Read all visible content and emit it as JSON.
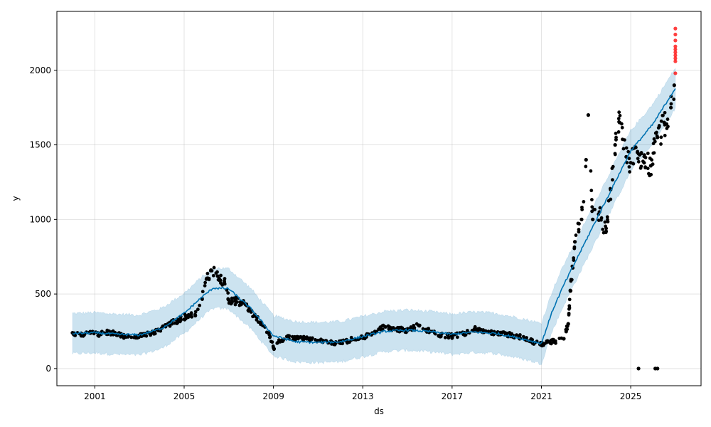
{
  "chart_data": {
    "type": "scatter",
    "title": "",
    "xlabel": "ds",
    "ylabel": "y",
    "xlim": [
      1999.3,
      2028.15
    ],
    "ylim": [
      -115,
      2395
    ],
    "x_ticks": [
      2001,
      2005,
      2009,
      2013,
      2017,
      2021,
      2025
    ],
    "x_tick_labels": [
      "2001",
      "2005",
      "2009",
      "2013",
      "2017",
      "2021",
      "2025"
    ],
    "y_ticks": [
      0,
      500,
      1000,
      1500,
      2000
    ],
    "y_tick_labels": [
      "0",
      "500",
      "1000",
      "1500",
      "2000"
    ],
    "grid": true,
    "colors": {
      "observed": "#000000",
      "forecast_line": "#0072B2",
      "uncertainty_band": "#0072B2",
      "future_points": "#ff0000"
    },
    "series": [
      {
        "kind": "observed",
        "points": [
          [
            2000.0,
            240
          ],
          [
            2000.4,
            228
          ],
          [
            2000.8,
            238
          ],
          [
            2001.2,
            230
          ],
          [
            2001.6,
            245
          ],
          [
            2002.0,
            232
          ],
          [
            2002.4,
            212
          ],
          [
            2002.8,
            220
          ],
          [
            2003.2,
            222
          ],
          [
            2003.6,
            240
          ],
          [
            2004.0,
            272
          ],
          [
            2004.4,
            300
          ],
          [
            2004.8,
            330
          ],
          [
            2005.2,
            360
          ],
          [
            2005.5,
            355
          ],
          [
            2005.8,
            470
          ],
          [
            2006.0,
            600
          ],
          [
            2006.2,
            660
          ],
          [
            2006.5,
            620
          ],
          [
            2006.8,
            580
          ],
          [
            2007.0,
            460
          ],
          [
            2007.3,
            450
          ],
          [
            2007.6,
            440
          ],
          [
            2008.0,
            380
          ],
          [
            2008.4,
            310
          ],
          [
            2008.8,
            240
          ],
          [
            2009.0,
            140
          ],
          [
            2009.2,
            175
          ],
          [
            2009.6,
            215
          ],
          [
            2010.0,
            200
          ],
          [
            2010.5,
            200
          ],
          [
            2011.0,
            188
          ],
          [
            2011.5,
            175
          ],
          [
            2012.0,
            170
          ],
          [
            2012.5,
            195
          ],
          [
            2013.0,
            210
          ],
          [
            2013.5,
            240
          ],
          [
            2014.0,
            280
          ],
          [
            2014.5,
            265
          ],
          [
            2015.0,
            255
          ],
          [
            2015.5,
            290
          ],
          [
            2016.0,
            250
          ],
          [
            2016.5,
            225
          ],
          [
            2017.0,
            218
          ],
          [
            2017.5,
            232
          ],
          [
            2018.0,
            265
          ],
          [
            2018.5,
            252
          ],
          [
            2019.0,
            238
          ],
          [
            2019.5,
            228
          ],
          [
            2020.0,
            215
          ],
          [
            2020.5,
            185
          ],
          [
            2021.0,
            165
          ],
          [
            2021.3,
            180
          ],
          [
            2021.6,
            182
          ],
          [
            2022.0,
            200
          ],
          [
            2022.2,
            300
          ],
          [
            2022.3,
            520
          ],
          [
            2022.5,
            850
          ],
          [
            2022.8,
            1000
          ],
          [
            2023.0,
            1400
          ],
          [
            2023.1,
            1700
          ],
          [
            2023.3,
            1000
          ],
          [
            2023.6,
            1050
          ],
          [
            2023.9,
            920
          ],
          [
            2024.1,
            1200
          ],
          [
            2024.3,
            1500
          ],
          [
            2024.5,
            1650
          ],
          [
            2024.8,
            1420
          ],
          [
            2025.0,
            1380
          ],
          [
            2025.3,
            1450
          ],
          [
            2025.6,
            1380
          ],
          [
            2025.9,
            1360
          ],
          [
            2026.2,
            1550
          ],
          [
            2026.5,
            1650
          ],
          [
            2026.8,
            1750
          ],
          [
            2026.95,
            1900
          ],
          [
            2025.35,
            0
          ],
          [
            2026.1,
            0
          ],
          [
            2026.2,
            0
          ]
        ]
      },
      {
        "kind": "forecast",
        "points": [
          [
            2000.0,
            235
          ],
          [
            2001.0,
            240
          ],
          [
            2002.0,
            230
          ],
          [
            2003.0,
            225
          ],
          [
            2004.0,
            270
          ],
          [
            2005.0,
            370
          ],
          [
            2005.8,
            480
          ],
          [
            2006.3,
            540
          ],
          [
            2007.0,
            535
          ],
          [
            2008.0,
            400
          ],
          [
            2009.0,
            220
          ],
          [
            2010.0,
            180
          ],
          [
            2011.0,
            175
          ],
          [
            2012.0,
            180
          ],
          [
            2013.0,
            215
          ],
          [
            2014.0,
            250
          ],
          [
            2015.0,
            258
          ],
          [
            2016.0,
            248
          ],
          [
            2017.0,
            230
          ],
          [
            2018.0,
            245
          ],
          [
            2019.0,
            235
          ],
          [
            2020.0,
            205
          ],
          [
            2021.0,
            168
          ],
          [
            2021.5,
            390
          ],
          [
            2022.0,
            560
          ],
          [
            2023.0,
            860
          ],
          [
            2024.0,
            1160
          ],
          [
            2025.0,
            1460
          ],
          [
            2026.0,
            1640
          ],
          [
            2027.0,
            1880
          ]
        ]
      },
      {
        "kind": "uncertainty_band",
        "points": [
          [
            2000.0,
            100,
            370
          ],
          [
            2001.0,
            105,
            375
          ],
          [
            2002.0,
            95,
            365
          ],
          [
            2003.0,
            90,
            360
          ],
          [
            2004.0,
            135,
            405
          ],
          [
            2005.0,
            235,
            505
          ],
          [
            2005.8,
            345,
            615
          ],
          [
            2006.3,
            405,
            675
          ],
          [
            2007.0,
            400,
            670
          ],
          [
            2008.0,
            265,
            535
          ],
          [
            2009.0,
            85,
            355
          ],
          [
            2010.0,
            45,
            315
          ],
          [
            2011.0,
            40,
            310
          ],
          [
            2012.0,
            45,
            315
          ],
          [
            2013.0,
            80,
            350
          ],
          [
            2014.0,
            115,
            385
          ],
          [
            2015.0,
            123,
            393
          ],
          [
            2016.0,
            113,
            383
          ],
          [
            2017.0,
            95,
            365
          ],
          [
            2018.0,
            110,
            380
          ],
          [
            2019.0,
            100,
            370
          ],
          [
            2020.0,
            70,
            340
          ],
          [
            2021.0,
            33,
            303
          ],
          [
            2021.5,
            255,
            525
          ],
          [
            2022.0,
            425,
            695
          ],
          [
            2023.0,
            725,
            995
          ],
          [
            2024.0,
            1025,
            1295
          ],
          [
            2025.0,
            1325,
            1595
          ],
          [
            2026.0,
            1505,
            1775
          ],
          [
            2027.0,
            1745,
            2015
          ]
        ]
      },
      {
        "kind": "future",
        "points": [
          [
            2027.0,
            2280
          ],
          [
            2027.0,
            2240
          ],
          [
            2027.0,
            2200
          ],
          [
            2027.0,
            2160
          ],
          [
            2027.0,
            2140
          ],
          [
            2027.0,
            2120
          ],
          [
            2027.0,
            2100
          ],
          [
            2027.0,
            2080
          ],
          [
            2027.0,
            2060
          ],
          [
            2027.0,
            1980
          ]
        ]
      }
    ]
  }
}
